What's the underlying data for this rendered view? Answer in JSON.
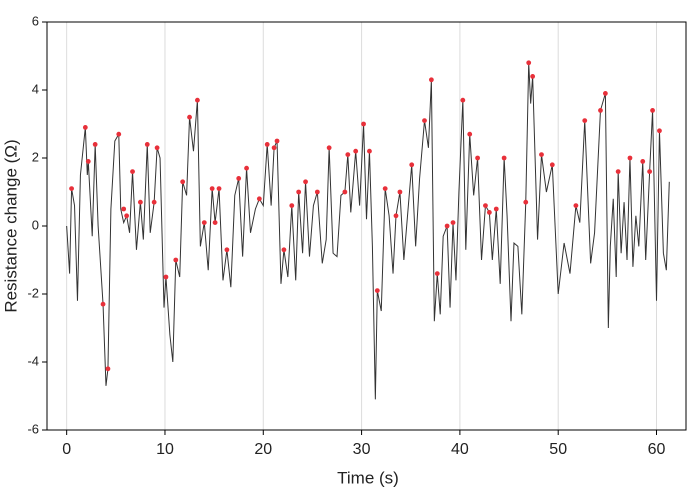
{
  "chart_data": {
    "type": "line",
    "xlabel": "Time (s)",
    "ylabel": "Resistance change (Ω)",
    "xlim": [
      -2,
      63
    ],
    "xticks": [
      0,
      10,
      20,
      30,
      40,
      50,
      60
    ],
    "ylim": [
      -6,
      6
    ],
    "yticks": [
      -6,
      -4,
      -2,
      0,
      2,
      4,
      6
    ],
    "xgrid": true,
    "series": [
      {
        "color": "#333333",
        "x": [
          0,
          0.3,
          0.5,
          0.8,
          1.1,
          1.4,
          1.9,
          2.1,
          2.2,
          2.6,
          2.9,
          3.2,
          3.7,
          4.0,
          4.2,
          4.5,
          4.9,
          5.3,
          5.5,
          5.8,
          6.1,
          6.4,
          6.7,
          7.1,
          7.5,
          7.8,
          8.2,
          8.5,
          8.9,
          9.2,
          9.5,
          9.9,
          10.1,
          10.5,
          10.8,
          11.1,
          11.5,
          11.8,
          12.2,
          12.5,
          12.9,
          13.3,
          13.6,
          14.0,
          14.4,
          14.8,
          15.1,
          15.5,
          15.9,
          16.3,
          16.7,
          17.1,
          17.5,
          17.9,
          18.3,
          18.7,
          19.2,
          19.6,
          20.0,
          20.4,
          20.8,
          21.1,
          21.4,
          21.8,
          22.1,
          22.5,
          22.9,
          23.3,
          23.6,
          24.0,
          24.3,
          24.7,
          25.1,
          25.5,
          26.0,
          26.4,
          26.7,
          27.1,
          27.5,
          27.9,
          28.3,
          28.6,
          28.9,
          29.4,
          29.8,
          30.2,
          30.5,
          30.8,
          31.1,
          31.4,
          31.6,
          32.0,
          32.4,
          32.8,
          33.2,
          33.5,
          33.9,
          34.3,
          34.7,
          35.1,
          35.5,
          35.9,
          36.4,
          36.8,
          37.1,
          37.4,
          37.7,
          38.0,
          38.3,
          38.7,
          39.0,
          39.3,
          39.6,
          39.9,
          40.3,
          40.6,
          41.0,
          41.4,
          41.8,
          42.2,
          42.6,
          43.0,
          43.3,
          43.7,
          44.1,
          44.5,
          44.8,
          45.2,
          45.5,
          45.9,
          46.3,
          46.7,
          47.0,
          47.2,
          47.4,
          47.9,
          48.3,
          48.8,
          49.4,
          50.0,
          50.6,
          51.2,
          51.8,
          52.2,
          52.7,
          53.3,
          53.7,
          54.3,
          54.8,
          55.1,
          55.3,
          55.6,
          55.9,
          56.1,
          56.4,
          56.7,
          57.0,
          57.3,
          57.6,
          57.9,
          58.2,
          58.6,
          58.9,
          59.3,
          59.6,
          60.0,
          60.3,
          60.7,
          61.0,
          61.3
        ],
        "values": [
          0,
          -1.4,
          1.1,
          0.6,
          -2.2,
          1.5,
          2.9,
          1.5,
          1.9,
          -0.3,
          2.4,
          0,
          -2.3,
          -4.7,
          -4.2,
          0.5,
          2.5,
          2.7,
          0.5,
          0.1,
          0.3,
          -0.2,
          1.6,
          -0.7,
          0.7,
          -0.4,
          2.4,
          -0.2,
          0.7,
          2.3,
          2.0,
          -2.4,
          -1.5,
          -3.2,
          -4.0,
          -1.0,
          -1.5,
          1.3,
          0.9,
          3.2,
          2.2,
          3.7,
          -0.6,
          0.1,
          -1.3,
          1.1,
          0.1,
          1.1,
          -1.6,
          -0.7,
          -1.8,
          0.9,
          1.4,
          -0.9,
          1.7,
          -0.2,
          0.5,
          0.8,
          0.6,
          2.4,
          0.6,
          2.3,
          2.5,
          -1.7,
          -0.7,
          -1.5,
          0.6,
          -1.6,
          1.0,
          -0.8,
          1.3,
          -0.9,
          0.6,
          1.0,
          -1.1,
          -0.4,
          2.3,
          -0.8,
          -0.9,
          0.9,
          1.0,
          2.1,
          0.4,
          2.2,
          0.6,
          3.0,
          0.2,
          2.2,
          -0.6,
          -5.1,
          -1.9,
          -2.5,
          1.1,
          0.3,
          -1.4,
          0.3,
          1.0,
          -1.0,
          0.4,
          1.8,
          -0.6,
          1.4,
          3.1,
          2.3,
          4.3,
          -2.8,
          -1.4,
          -2.6,
          -0.3,
          0,
          -2.4,
          0.1,
          -1.6,
          1.0,
          3.7,
          -0.7,
          2.7,
          0.9,
          2.0,
          -1.0,
          0.6,
          0.4,
          -1.0,
          0.5,
          -1.7,
          2.0,
          0.3,
          -2.8,
          -0.5,
          -0.6,
          -2.6,
          0.7,
          4.8,
          3.6,
          4.4,
          -0.4,
          2.1,
          1.0,
          1.8,
          -2.0,
          -0.5,
          -1.4,
          0.6,
          0.1,
          3.1,
          -1.1,
          -0.2,
          3.4,
          3.9,
          -3.0,
          -0.6,
          0.8,
          -1.5,
          1.6,
          -0.8,
          0.7,
          -1.0,
          2.0,
          -1.2,
          0.3,
          -0.6,
          1.9,
          -1.0,
          1.6,
          3.4,
          -2.2,
          2.8,
          -0.8,
          -1.3,
          1.3
        ]
      },
      {
        "color": "#e8303a",
        "x": [
          0.5,
          1.9,
          2.2,
          2.9,
          3.7,
          4.2,
          5.3,
          5.8,
          6.1,
          6.7,
          7.5,
          8.2,
          8.9,
          9.2,
          10.1,
          11.1,
          11.8,
          12.5,
          13.3,
          14.0,
          14.8,
          15.1,
          15.5,
          16.3,
          17.5,
          18.3,
          19.6,
          20.4,
          21.1,
          21.4,
          22.1,
          22.9,
          23.6,
          24.3,
          25.5,
          26.7,
          28.3,
          28.6,
          29.4,
          30.2,
          30.8,
          31.6,
          32.4,
          33.5,
          33.9,
          35.1,
          36.4,
          37.1,
          37.7,
          38.7,
          39.3,
          40.3,
          41.0,
          41.8,
          42.6,
          43.0,
          43.7,
          44.5,
          46.7,
          47.0,
          47.4,
          48.3,
          49.4,
          51.8,
          52.7,
          54.3,
          54.8,
          56.1,
          57.3,
          58.6,
          59.3,
          59.6,
          60.3
        ],
        "values": [
          1.1,
          2.9,
          1.9,
          2.4,
          -2.3,
          -4.2,
          2.7,
          0.5,
          0.3,
          1.6,
          0.7,
          2.4,
          0.7,
          2.3,
          -1.5,
          -1.0,
          1.3,
          3.2,
          3.7,
          0.1,
          1.1,
          0.1,
          1.1,
          -0.7,
          1.4,
          1.7,
          0.8,
          2.4,
          2.3,
          2.5,
          -0.7,
          0.6,
          1.0,
          1.3,
          1.0,
          2.3,
          1.0,
          2.1,
          2.2,
          3.0,
          2.2,
          -1.9,
          1.1,
          0.3,
          1.0,
          1.8,
          3.1,
          4.3,
          -1.4,
          0,
          0.1,
          3.7,
          2.7,
          2.0,
          0.6,
          0.4,
          0.5,
          2.0,
          0.7,
          4.8,
          4.4,
          2.1,
          1.8,
          0.6,
          3.1,
          3.4,
          3.9,
          1.6,
          2.0,
          1.9,
          1.6,
          3.4,
          2.8
        ]
      }
    ]
  }
}
